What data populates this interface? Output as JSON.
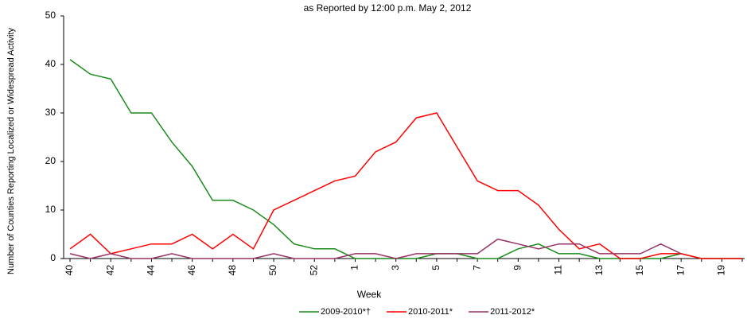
{
  "chart_data": {
    "type": "line",
    "title": "as Reported by 12:00 p.m. May 2, 2012",
    "x_label": "Week",
    "y_label": "Number of Counties Reporting Localized or Widespread Activity",
    "categories": [
      "40",
      null,
      "42",
      null,
      "44",
      null,
      "46",
      null,
      "48",
      null,
      "50",
      null,
      "52",
      null,
      "1",
      null,
      "3",
      null,
      "5",
      null,
      "7",
      null,
      "9",
      null,
      "11",
      null,
      "13",
      null,
      "15",
      null,
      "17",
      null,
      "19",
      null
    ],
    "series": [
      {
        "name": "2009-2010*†",
        "color": "#1a8c1a",
        "values": [
          41,
          38,
          37,
          30,
          30,
          24,
          19,
          12,
          12,
          10,
          7,
          3,
          2,
          2,
          0,
          0,
          0,
          0,
          1,
          1,
          0,
          0,
          2,
          3,
          1,
          1,
          0,
          0,
          0,
          0,
          1,
          0,
          0,
          0
        ]
      },
      {
        "name": "2010-2011*",
        "color": "#ff0000",
        "values": [
          2,
          5,
          1,
          2,
          3,
          3,
          5,
          2,
          5,
          2,
          10,
          12,
          14,
          16,
          17,
          22,
          24,
          29,
          30,
          23,
          16,
          14,
          14,
          11,
          6,
          2,
          3,
          0,
          0,
          1,
          1,
          0,
          0,
          0
        ]
      },
      {
        "name": "2011-2012*",
        "color": "#993366",
        "values": [
          1,
          0,
          1,
          0,
          0,
          1,
          0,
          0,
          0,
          0,
          1,
          0,
          0,
          0,
          1,
          1,
          0,
          1,
          1,
          1,
          1,
          4,
          3,
          2,
          3,
          3,
          1,
          1,
          1,
          3,
          1,
          null,
          null,
          null
        ]
      }
    ],
    "ylim": [
      0,
      50
    ],
    "yticks": [
      0,
      10,
      20,
      30,
      40,
      50
    ],
    "grid": false
  }
}
